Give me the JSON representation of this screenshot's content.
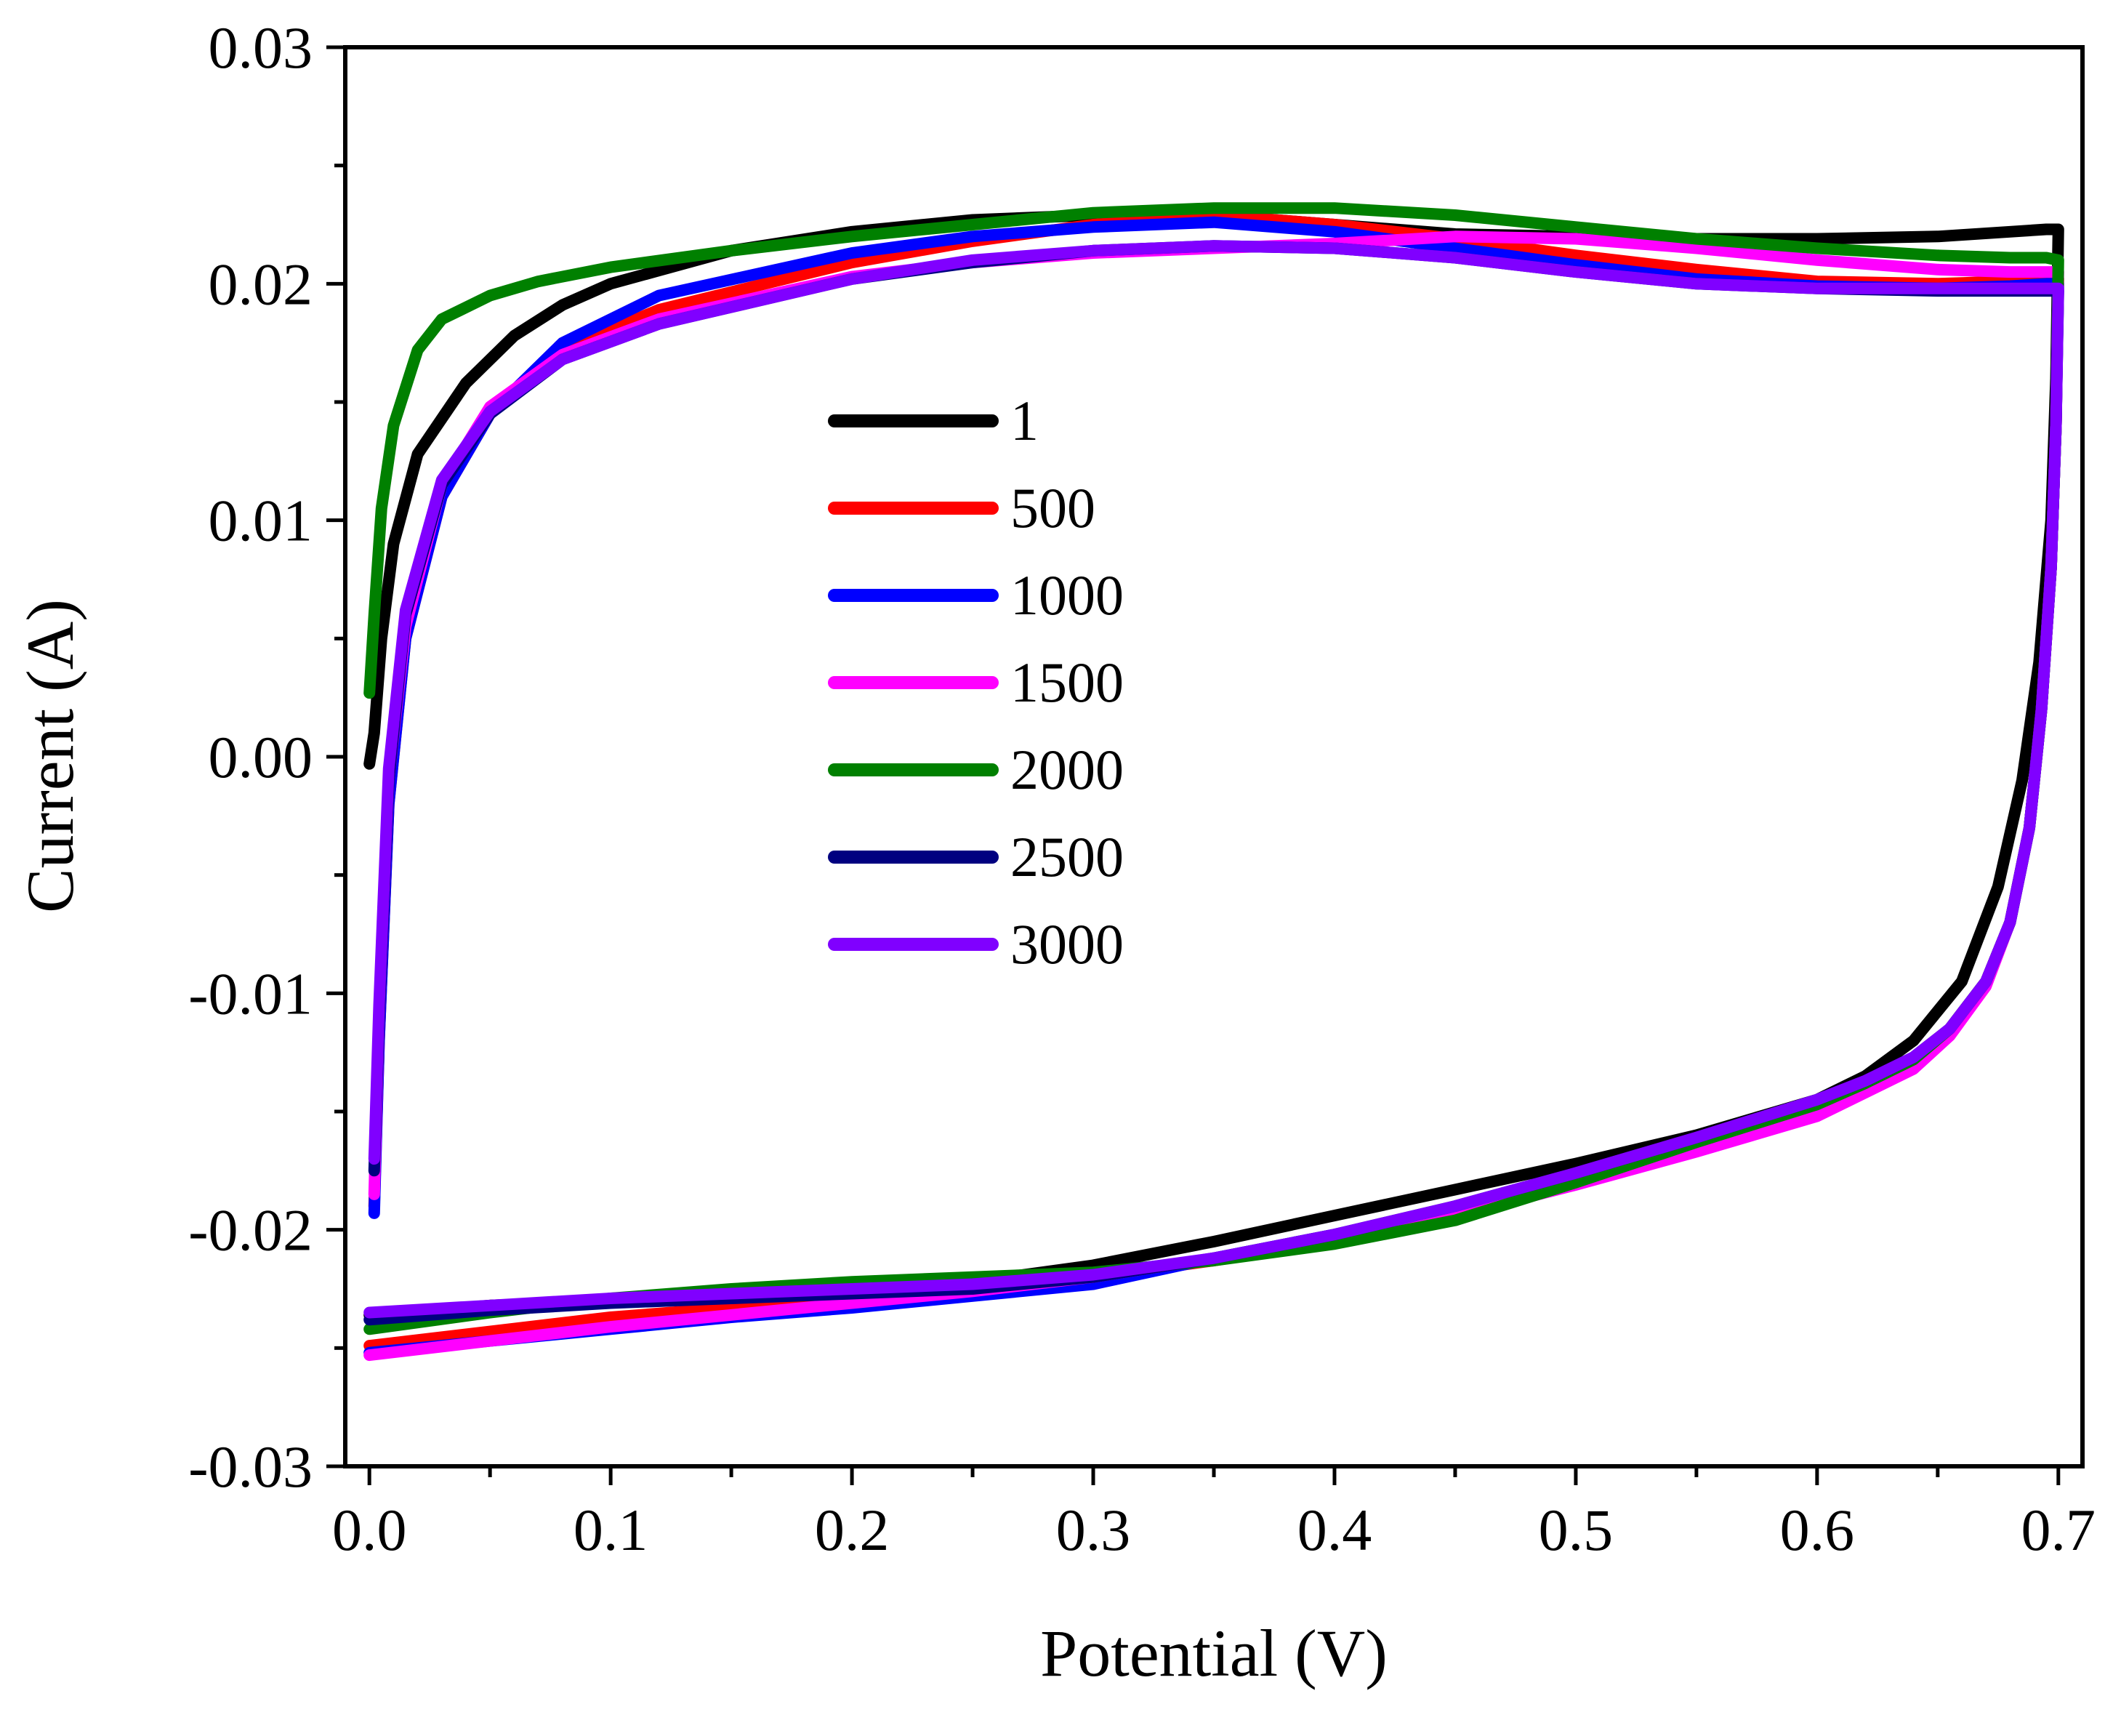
{
  "chart_data": {
    "type": "line",
    "xlabel": "Potential (V)",
    "ylabel": "Current (A)",
    "xlim": [
      -0.01,
      0.71
    ],
    "ylim": [
      -0.03,
      0.03
    ],
    "grid": false,
    "legend_position": "center-left",
    "x_ticks": [
      {
        "value": 0.0,
        "label": "0.0"
      },
      {
        "value": 0.1,
        "label": "0.1"
      },
      {
        "value": 0.2,
        "label": "0.2"
      },
      {
        "value": 0.3,
        "label": "0.3"
      },
      {
        "value": 0.4,
        "label": "0.4"
      },
      {
        "value": 0.5,
        "label": "0.5"
      },
      {
        "value": 0.6,
        "label": "0.6"
      },
      {
        "value": 0.7,
        "label": "0.7"
      }
    ],
    "y_ticks": [
      {
        "value": 0.03,
        "label": "0.03"
      },
      {
        "value": 0.02,
        "label": "0.02"
      },
      {
        "value": 0.01,
        "label": "0.01"
      },
      {
        "value": 0.0,
        "label": "0.00"
      },
      {
        "value": -0.01,
        "label": "-0.01"
      },
      {
        "value": -0.02,
        "label": "-0.02"
      },
      {
        "value": -0.03,
        "label": "-0.03"
      }
    ],
    "series": [
      {
        "name": "1",
        "color": "#000000",
        "x": [
          0.0,
          0.002,
          0.005,
          0.01,
          0.02,
          0.04,
          0.06,
          0.08,
          0.1,
          0.15,
          0.2,
          0.25,
          0.3,
          0.35,
          0.4,
          0.45,
          0.5,
          0.55,
          0.6,
          0.65,
          0.68,
          0.695,
          0.7,
          0.699,
          0.697,
          0.692,
          0.685,
          0.675,
          0.66,
          0.64,
          0.62,
          0.6,
          0.55,
          0.5,
          0.45,
          0.4,
          0.35,
          0.3,
          0.25,
          0.2,
          0.15,
          0.1,
          0.05,
          0.0
        ],
        "y": [
          -0.0003,
          0.001,
          0.005,
          0.009,
          0.0128,
          0.0158,
          0.0178,
          0.0191,
          0.02,
          0.0214,
          0.0222,
          0.0227,
          0.0229,
          0.0229,
          0.0225,
          0.0221,
          0.022,
          0.0219,
          0.0219,
          0.022,
          0.0222,
          0.0223,
          0.0223,
          0.016,
          0.01,
          0.004,
          -0.001,
          -0.0055,
          -0.0095,
          -0.012,
          -0.0135,
          -0.0145,
          -0.016,
          -0.0172,
          -0.0183,
          -0.0194,
          -0.0205,
          -0.0215,
          -0.0222,
          -0.0226,
          -0.0228,
          -0.023,
          -0.0232,
          -0.0236
        ]
      },
      {
        "name": "500",
        "color": "#ff0000",
        "x": [
          0.002,
          0.004,
          0.008,
          0.015,
          0.03,
          0.05,
          0.08,
          0.12,
          0.2,
          0.25,
          0.3,
          0.35,
          0.4,
          0.45,
          0.5,
          0.55,
          0.6,
          0.65,
          0.68,
          0.695,
          0.7,
          0.699,
          0.697,
          0.693,
          0.688,
          0.68,
          0.67,
          0.655,
          0.64,
          0.62,
          0.6,
          0.55,
          0.5,
          0.45,
          0.4,
          0.35,
          0.3,
          0.25,
          0.2,
          0.15,
          0.1,
          0.05,
          0.0
        ],
        "y": [
          -0.019,
          -0.012,
          -0.002,
          0.005,
          0.011,
          0.0145,
          0.0172,
          0.0189,
          0.0209,
          0.0218,
          0.0225,
          0.0229,
          0.0225,
          0.0219,
          0.0212,
          0.0206,
          0.0201,
          0.02,
          0.0201,
          0.0202,
          0.0202,
          0.014,
          0.008,
          0.002,
          -0.003,
          -0.007,
          -0.0095,
          -0.0115,
          -0.0128,
          -0.0138,
          -0.0147,
          -0.0163,
          -0.0178,
          -0.0193,
          -0.0205,
          -0.0213,
          -0.022,
          -0.0226,
          -0.023,
          -0.0233,
          -0.0237,
          -0.0243,
          -0.0249
        ]
      },
      {
        "name": "1000",
        "color": "#0000ff",
        "x": [
          0.002,
          0.004,
          0.008,
          0.015,
          0.03,
          0.05,
          0.08,
          0.12,
          0.2,
          0.25,
          0.3,
          0.35,
          0.4,
          0.45,
          0.5,
          0.55,
          0.6,
          0.65,
          0.68,
          0.695,
          0.7,
          0.699,
          0.697,
          0.693,
          0.688,
          0.68,
          0.67,
          0.655,
          0.64,
          0.62,
          0.6,
          0.55,
          0.5,
          0.45,
          0.4,
          0.35,
          0.3,
          0.25,
          0.2,
          0.15,
          0.1,
          0.05,
          0.0
        ],
        "y": [
          -0.0193,
          -0.012,
          -0.002,
          0.005,
          0.011,
          0.0145,
          0.0175,
          0.0195,
          0.0213,
          0.022,
          0.0224,
          0.0226,
          0.0222,
          0.0215,
          0.0208,
          0.0202,
          0.0199,
          0.0198,
          0.0199,
          0.02,
          0.02,
          0.014,
          0.008,
          0.002,
          -0.003,
          -0.007,
          -0.0095,
          -0.0115,
          -0.0128,
          -0.0138,
          -0.0147,
          -0.0163,
          -0.0178,
          -0.0191,
          -0.0202,
          -0.0212,
          -0.0223,
          -0.0228,
          -0.0233,
          -0.0237,
          -0.0242,
          -0.0247,
          -0.0252
        ]
      },
      {
        "name": "1500",
        "color": "#ff00ff",
        "x": [
          0.002,
          0.004,
          0.008,
          0.015,
          0.03,
          0.05,
          0.08,
          0.12,
          0.2,
          0.25,
          0.3,
          0.35,
          0.4,
          0.45,
          0.5,
          0.55,
          0.6,
          0.65,
          0.68,
          0.695,
          0.7,
          0.699,
          0.697,
          0.693,
          0.688,
          0.68,
          0.67,
          0.655,
          0.64,
          0.62,
          0.6,
          0.55,
          0.5,
          0.45,
          0.4,
          0.35,
          0.3,
          0.25,
          0.2,
          0.15,
          0.1,
          0.05,
          0.0
        ],
        "y": [
          -0.0185,
          -0.011,
          -0.001,
          0.0055,
          0.0115,
          0.0148,
          0.017,
          0.0185,
          0.0203,
          0.0209,
          0.0213,
          0.0215,
          0.0217,
          0.022,
          0.0219,
          0.0215,
          0.021,
          0.0206,
          0.0205,
          0.0205,
          0.0205,
          0.014,
          0.008,
          0.002,
          -0.003,
          -0.007,
          -0.0097,
          -0.0118,
          -0.0132,
          -0.0142,
          -0.0152,
          -0.0167,
          -0.0181,
          -0.0194,
          -0.0204,
          -0.0212,
          -0.022,
          -0.0226,
          -0.0231,
          -0.0236,
          -0.0241,
          -0.0247,
          -0.0253
        ]
      },
      {
        "name": "2000",
        "color": "#008000",
        "x": [
          0.0,
          0.002,
          0.005,
          0.01,
          0.02,
          0.03,
          0.05,
          0.07,
          0.1,
          0.15,
          0.2,
          0.25,
          0.3,
          0.35,
          0.4,
          0.45,
          0.5,
          0.55,
          0.6,
          0.65,
          0.68,
          0.695,
          0.7,
          0.699,
          0.697,
          0.693,
          0.688,
          0.68,
          0.67,
          0.655,
          0.64,
          0.62,
          0.6,
          0.55,
          0.5,
          0.45,
          0.4,
          0.35,
          0.3,
          0.25,
          0.2,
          0.15,
          0.1,
          0.05,
          0.0
        ],
        "y": [
          0.0027,
          0.006,
          0.0105,
          0.014,
          0.0172,
          0.0185,
          0.0195,
          0.0201,
          0.0207,
          0.0214,
          0.022,
          0.0225,
          0.023,
          0.0232,
          0.0232,
          0.0229,
          0.0224,
          0.0219,
          0.0215,
          0.0212,
          0.0211,
          0.0211,
          0.021,
          0.014,
          0.008,
          0.002,
          -0.003,
          -0.007,
          -0.0095,
          -0.0115,
          -0.0128,
          -0.0138,
          -0.0147,
          -0.0163,
          -0.018,
          -0.0196,
          -0.0206,
          -0.0213,
          -0.0218,
          -0.022,
          -0.0222,
          -0.0225,
          -0.0229,
          -0.0235,
          -0.0242
        ]
      },
      {
        "name": "2500",
        "color": "#000080",
        "x": [
          0.002,
          0.004,
          0.008,
          0.015,
          0.03,
          0.05,
          0.08,
          0.12,
          0.2,
          0.25,
          0.3,
          0.35,
          0.4,
          0.45,
          0.5,
          0.55,
          0.6,
          0.65,
          0.68,
          0.695,
          0.7,
          0.699,
          0.697,
          0.693,
          0.688,
          0.68,
          0.67,
          0.655,
          0.64,
          0.62,
          0.6,
          0.55,
          0.5,
          0.45,
          0.4,
          0.35,
          0.3,
          0.25,
          0.2,
          0.15,
          0.1,
          0.05,
          0.0
        ],
        "y": [
          -0.0175,
          -0.011,
          -0.001,
          0.006,
          0.0115,
          0.0145,
          0.0168,
          0.0183,
          0.0202,
          0.0209,
          0.0214,
          0.0216,
          0.0215,
          0.0211,
          0.0205,
          0.02,
          0.0198,
          0.0197,
          0.0197,
          0.0197,
          0.0197,
          0.014,
          0.008,
          0.002,
          -0.003,
          -0.007,
          -0.0095,
          -0.0115,
          -0.0127,
          -0.0137,
          -0.0145,
          -0.0161,
          -0.0176,
          -0.019,
          -0.0202,
          -0.0212,
          -0.022,
          -0.0225,
          -0.0227,
          -0.0229,
          -0.0231,
          -0.0234,
          -0.0238
        ]
      },
      {
        "name": "3000",
        "color": "#8000ff",
        "x": [
          0.002,
          0.004,
          0.008,
          0.015,
          0.03,
          0.05,
          0.08,
          0.12,
          0.2,
          0.25,
          0.3,
          0.35,
          0.4,
          0.45,
          0.5,
          0.55,
          0.6,
          0.65,
          0.68,
          0.695,
          0.7,
          0.699,
          0.697,
          0.693,
          0.688,
          0.68,
          0.67,
          0.655,
          0.64,
          0.62,
          0.6,
          0.55,
          0.5,
          0.45,
          0.4,
          0.35,
          0.3,
          0.25,
          0.2,
          0.15,
          0.1,
          0.05,
          0.0
        ],
        "y": [
          -0.017,
          -0.0105,
          -0.0005,
          0.0062,
          0.0117,
          0.0146,
          0.0168,
          0.0183,
          0.0202,
          0.021,
          0.0214,
          0.0216,
          0.0215,
          0.0211,
          0.0205,
          0.02,
          0.0198,
          0.0198,
          0.0198,
          0.0198,
          0.0198,
          0.014,
          0.008,
          0.002,
          -0.003,
          -0.007,
          -0.0095,
          -0.0115,
          -0.0127,
          -0.0137,
          -0.0145,
          -0.0161,
          -0.0176,
          -0.019,
          -0.0202,
          -0.0212,
          -0.0219,
          -0.0223,
          -0.0225,
          -0.0227,
          -0.0229,
          -0.0232,
          -0.0235
        ]
      }
    ]
  }
}
